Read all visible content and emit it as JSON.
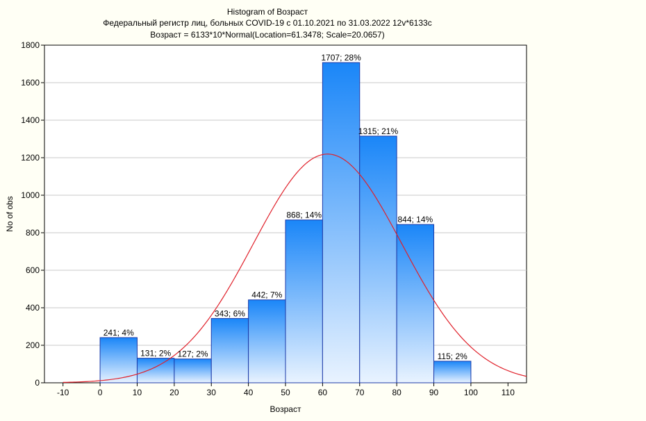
{
  "chart_data": {
    "type": "bar",
    "title": "Histogram of Возраст",
    "subtitle": "Федеральный регистр лиц, больных COVID-19 с 01.10.2021 по 31.03.2022 12v*6133c",
    "fit_label": "Возраст = 6133*10*Normal(Location=61.3478; Scale=20.0657)",
    "xlabel": "Возраст",
    "ylabel": "No of obs",
    "xlim": [
      -15,
      115
    ],
    "ylim": [
      0,
      1800
    ],
    "x_ticks": [
      -10,
      0,
      10,
      20,
      30,
      40,
      50,
      60,
      70,
      80,
      90,
      100,
      110
    ],
    "y_ticks": [
      0,
      200,
      400,
      600,
      800,
      1000,
      1200,
      1400,
      1600,
      1800
    ],
    "bins": [
      {
        "from": 0,
        "to": 10,
        "value": 241,
        "label": "241; 4%"
      },
      {
        "from": 10,
        "to": 20,
        "value": 131,
        "label": "131; 2%"
      },
      {
        "from": 20,
        "to": 30,
        "value": 127,
        "label": "127; 2%"
      },
      {
        "from": 30,
        "to": 40,
        "value": 343,
        "label": "343; 6%"
      },
      {
        "from": 40,
        "to": 50,
        "value": 442,
        "label": "442; 7%"
      },
      {
        "from": 50,
        "to": 60,
        "value": 868,
        "label": "868; 14%"
      },
      {
        "from": 60,
        "to": 70,
        "value": 1707,
        "label": "1707; 28%"
      },
      {
        "from": 70,
        "to": 80,
        "value": 1315,
        "label": "1315; 21%"
      },
      {
        "from": 80,
        "to": 90,
        "value": 844,
        "label": "844; 14%"
      },
      {
        "from": 90,
        "to": 100,
        "value": 115,
        "label": "115; 2%"
      }
    ],
    "normal_fit": {
      "n": 6133,
      "bin_width": 10,
      "location": 61.3478,
      "scale": 20.0657,
      "color": "#e0202a"
    },
    "grid": true,
    "colors": {
      "bar_top": "#1a86f8",
      "bar_bottom": "#e9f3ff",
      "bar_border": "#1c3aa8",
      "plot_bg": "#ffffff"
    }
  }
}
